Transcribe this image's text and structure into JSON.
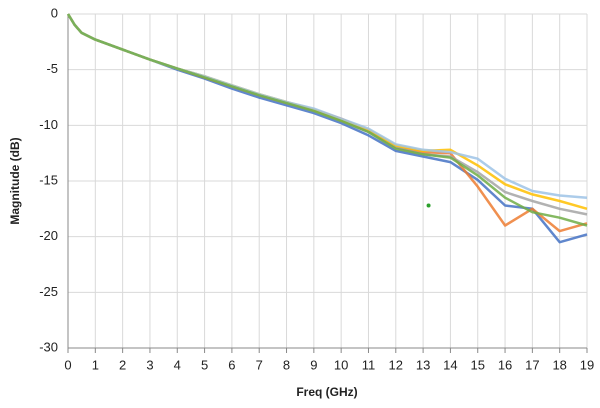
{
  "chart_data": {
    "type": "line",
    "x_label": "Freq (GHz)",
    "y_label": "Magnitude (dB)",
    "x": [
      0,
      0.25,
      0.5,
      1,
      2,
      3,
      4,
      5,
      6,
      7,
      8,
      9,
      10,
      11,
      12,
      13,
      14,
      15,
      16,
      17,
      18,
      19
    ],
    "series": [
      {
        "color": "#4472c4",
        "values": [
          0,
          -1.0,
          -1.7,
          -2.3,
          -3.2,
          -4.1,
          -5.0,
          -5.8,
          -6.7,
          -7.5,
          -8.2,
          -8.9,
          -9.8,
          -10.9,
          -12.3,
          -12.8,
          -13.3,
          -14.9,
          -17.2,
          -17.5,
          -20.5,
          -19.8
        ]
      },
      {
        "color": "#ed7d31",
        "values": [
          0,
          -1.0,
          -1.7,
          -2.3,
          -3.2,
          -4.1,
          -4.9,
          -5.7,
          -6.5,
          -7.3,
          -8.0,
          -8.6,
          -9.4,
          -10.5,
          -12.0,
          -12.4,
          -12.5,
          -15.5,
          -19.0,
          -17.5,
          -19.5,
          -18.8
        ]
      },
      {
        "color": "#a5a5a5",
        "values": [
          0,
          -1.0,
          -1.7,
          -2.3,
          -3.2,
          -4.1,
          -4.9,
          -5.6,
          -6.5,
          -7.3,
          -8.0,
          -8.7,
          -9.6,
          -10.6,
          -12.0,
          -12.6,
          -12.8,
          -14.2,
          -16.0,
          -16.8,
          -17.5,
          -18.0
        ]
      },
      {
        "color": "#ffc000",
        "values": [
          0,
          -1.0,
          -1.7,
          -2.3,
          -3.2,
          -4.1,
          -4.9,
          -5.6,
          -6.4,
          -7.2,
          -7.9,
          -8.6,
          -9.5,
          -10.4,
          -11.8,
          -12.3,
          -12.2,
          -13.6,
          -15.3,
          -16.2,
          -16.8,
          -17.5
        ]
      },
      {
        "color": "#9dc3e6",
        "values": [
          0,
          -1.0,
          -1.7,
          -2.3,
          -3.2,
          -4.1,
          -4.9,
          -5.6,
          -6.4,
          -7.2,
          -7.9,
          -8.5,
          -9.4,
          -10.3,
          -11.7,
          -12.2,
          -12.4,
          -13.0,
          -14.8,
          -15.9,
          -16.3,
          -16.5
        ]
      },
      {
        "color": "#70ad47",
        "values": [
          0,
          -1.0,
          -1.7,
          -2.3,
          -3.2,
          -4.1,
          -4.9,
          -5.7,
          -6.5,
          -7.3,
          -8.0,
          -8.7,
          -9.6,
          -10.6,
          -12.1,
          -12.6,
          -12.9,
          -14.5,
          -16.5,
          -17.8,
          -18.3,
          -19.0
        ]
      }
    ],
    "points": [
      {
        "x": 13.2,
        "y": -17.2,
        "color": "#2ca02c"
      }
    ],
    "xlim": [
      0,
      19
    ],
    "ylim": [
      -30,
      0
    ],
    "xticks": [
      0,
      1,
      2,
      3,
      4,
      5,
      6,
      7,
      8,
      9,
      10,
      11,
      12,
      13,
      14,
      15,
      16,
      17,
      18,
      19
    ],
    "yticks": [
      0,
      -5,
      -10,
      -15,
      -20,
      -25,
      -30
    ],
    "grid": true
  }
}
